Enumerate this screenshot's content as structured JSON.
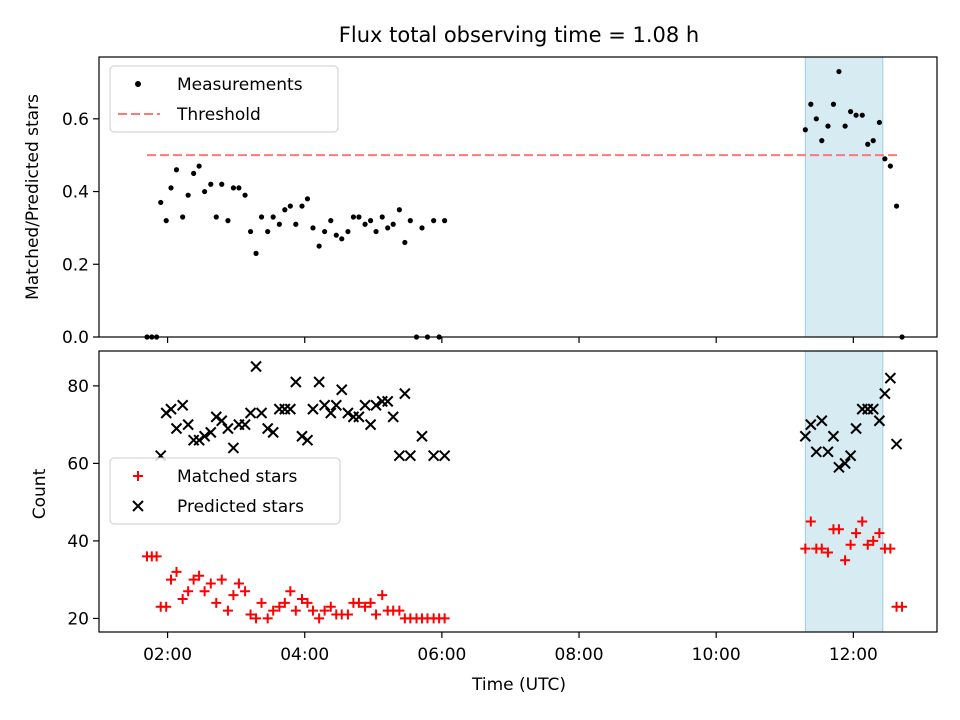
{
  "chart_data": {
    "title": "Flux total observing time = 1.08 h",
    "xlabel": "Time (UTC)",
    "xlim_hours": [
      1.0,
      13.22
    ],
    "xticks": [
      "02:00",
      "04:00",
      "06:00",
      "08:00",
      "10:00",
      "12:00"
    ],
    "highlight_span_hours": [
      11.3,
      12.43
    ],
    "colors": {
      "measure": "#000000",
      "threshold": "#ff7777",
      "matched": "#ff0000",
      "predicted": "#000000",
      "span": "#add8e6"
    },
    "panels": [
      {
        "type": "scatter",
        "ylabel": "Matched/Predicted stars",
        "ylim": [
          0,
          0.77
        ],
        "yticks": [
          "0.0",
          "0.2",
          "0.4",
          "0.6"
        ],
        "legend_position": "upper-left",
        "legend": [
          "Measurements",
          "Threshold"
        ],
        "threshold": {
          "value": 0.5,
          "x": [
            1.7,
            12.68
          ]
        },
        "series": [
          {
            "name": "Measurements",
            "points": [
              [
                1.7,
                0
              ],
              [
                1.77,
                0
              ],
              [
                1.84,
                0
              ],
              [
                1.9,
                0.37
              ],
              [
                1.98,
                0.32
              ],
              [
                2.05,
                0.41
              ],
              [
                2.13,
                0.46
              ],
              [
                2.22,
                0.33
              ],
              [
                2.3,
                0.39
              ],
              [
                2.38,
                0.45
              ],
              [
                2.46,
                0.47
              ],
              [
                2.54,
                0.4
              ],
              [
                2.63,
                0.42
              ],
              [
                2.71,
                0.33
              ],
              [
                2.79,
                0.42
              ],
              [
                2.88,
                0.32
              ],
              [
                2.96,
                0.41
              ],
              [
                3.04,
                0.41
              ],
              [
                3.13,
                0.39
              ],
              [
                3.21,
                0.29
              ],
              [
                3.29,
                0.23
              ],
              [
                3.37,
                0.33
              ],
              [
                3.46,
                0.29
              ],
              [
                3.54,
                0.33
              ],
              [
                3.63,
                0.31
              ],
              [
                3.71,
                0.35
              ],
              [
                3.79,
                0.36
              ],
              [
                3.87,
                0.31
              ],
              [
                3.96,
                0.36
              ],
              [
                4.04,
                0.38
              ],
              [
                4.12,
                0.3
              ],
              [
                4.21,
                0.25
              ],
              [
                4.29,
                0.29
              ],
              [
                4.38,
                0.32
              ],
              [
                4.46,
                0.28
              ],
              [
                4.54,
                0.27
              ],
              [
                4.63,
                0.29
              ],
              [
                4.71,
                0.33
              ],
              [
                4.79,
                0.33
              ],
              [
                4.88,
                0.31
              ],
              [
                4.96,
                0.32
              ],
              [
                5.04,
                0.29
              ],
              [
                5.13,
                0.33
              ],
              [
                5.21,
                0.3
              ],
              [
                5.29,
                0.31
              ],
              [
                5.38,
                0.35
              ],
              [
                5.46,
                0.26
              ],
              [
                5.54,
                0.32
              ],
              [
                5.63,
                0
              ],
              [
                5.71,
                0.3
              ],
              [
                5.79,
                0
              ],
              [
                5.88,
                0.32
              ],
              [
                5.96,
                0
              ],
              [
                6.04,
                0.32
              ],
              [
                11.3,
                0.57
              ],
              [
                11.38,
                0.64
              ],
              [
                11.46,
                0.6
              ],
              [
                11.54,
                0.54
              ],
              [
                11.63,
                0.58
              ],
              [
                11.71,
                0.64
              ],
              [
                11.79,
                0.73
              ],
              [
                11.88,
                0.58
              ],
              [
                11.96,
                0.62
              ],
              [
                12.04,
                0.61
              ],
              [
                12.13,
                0.61
              ],
              [
                12.21,
                0.53
              ],
              [
                12.29,
                0.54
              ],
              [
                12.38,
                0.59
              ],
              [
                12.46,
                0.49
              ],
              [
                12.54,
                0.47
              ],
              [
                12.63,
                0.36
              ],
              [
                12.71,
                0
              ]
            ]
          }
        ]
      },
      {
        "type": "scatter",
        "ylabel": "Count",
        "ylim": [
          16.5,
          89
        ],
        "yticks": [
          "20",
          "40",
          "60",
          "80"
        ],
        "legend_position": "center-left",
        "legend": [
          "Matched stars",
          "Predicted stars"
        ],
        "series": [
          {
            "name": "Matched stars",
            "marker": "plus",
            "points": [
              [
                1.7,
                36
              ],
              [
                1.77,
                36
              ],
              [
                1.84,
                36
              ],
              [
                1.9,
                23
              ],
              [
                1.98,
                23
              ],
              [
                2.05,
                30
              ],
              [
                2.13,
                32
              ],
              [
                2.22,
                25
              ],
              [
                2.3,
                27
              ],
              [
                2.38,
                30
              ],
              [
                2.46,
                31
              ],
              [
                2.54,
                27
              ],
              [
                2.63,
                29
              ],
              [
                2.71,
                24
              ],
              [
                2.79,
                30
              ],
              [
                2.88,
                22
              ],
              [
                2.96,
                26
              ],
              [
                3.04,
                29
              ],
              [
                3.13,
                27
              ],
              [
                3.21,
                21
              ],
              [
                3.29,
                20
              ],
              [
                3.37,
                24
              ],
              [
                3.46,
                20
              ],
              [
                3.54,
                22
              ],
              [
                3.63,
                23
              ],
              [
                3.71,
                24
              ],
              [
                3.79,
                27
              ],
              [
                3.87,
                22
              ],
              [
                3.96,
                25
              ],
              [
                4.04,
                24
              ],
              [
                4.12,
                22
              ],
              [
                4.21,
                20
              ],
              [
                4.29,
                22
              ],
              [
                4.38,
                23
              ],
              [
                4.46,
                21
              ],
              [
                4.54,
                21
              ],
              [
                4.63,
                21
              ],
              [
                4.71,
                24
              ],
              [
                4.79,
                24
              ],
              [
                4.88,
                23
              ],
              [
                4.96,
                24
              ],
              [
                5.04,
                21
              ],
              [
                5.13,
                26
              ],
              [
                5.21,
                22
              ],
              [
                5.29,
                22
              ],
              [
                5.38,
                22
              ],
              [
                5.46,
                20
              ],
              [
                5.54,
                20
              ],
              [
                5.63,
                20
              ],
              [
                5.71,
                20
              ],
              [
                5.79,
                20
              ],
              [
                5.88,
                20
              ],
              [
                5.96,
                20
              ],
              [
                6.04,
                20
              ],
              [
                11.3,
                38
              ],
              [
                11.38,
                45
              ],
              [
                11.46,
                38
              ],
              [
                11.54,
                38
              ],
              [
                11.63,
                37
              ],
              [
                11.71,
                43
              ],
              [
                11.79,
                43
              ],
              [
                11.88,
                35
              ],
              [
                11.96,
                39
              ],
              [
                12.04,
                42
              ],
              [
                12.13,
                45
              ],
              [
                12.21,
                39
              ],
              [
                12.29,
                40
              ],
              [
                12.38,
                42
              ],
              [
                12.46,
                38
              ],
              [
                12.54,
                38
              ],
              [
                12.63,
                23
              ],
              [
                12.71,
                23
              ]
            ]
          },
          {
            "name": "Predicted stars",
            "marker": "x",
            "points": [
              [
                1.9,
                62
              ],
              [
                1.98,
                73
              ],
              [
                2.05,
                74
              ],
              [
                2.13,
                69
              ],
              [
                2.22,
                75
              ],
              [
                2.3,
                70
              ],
              [
                2.38,
                66
              ],
              [
                2.46,
                66
              ],
              [
                2.54,
                67
              ],
              [
                2.63,
                68
              ],
              [
                2.71,
                72
              ],
              [
                2.79,
                71
              ],
              [
                2.88,
                69
              ],
              [
                2.96,
                64
              ],
              [
                3.04,
                70
              ],
              [
                3.13,
                70
              ],
              [
                3.21,
                73
              ],
              [
                3.29,
                85
              ],
              [
                3.37,
                73
              ],
              [
                3.46,
                69
              ],
              [
                3.54,
                68
              ],
              [
                3.63,
                74
              ],
              [
                3.71,
                74
              ],
              [
                3.79,
                74
              ],
              [
                3.87,
                81
              ],
              [
                3.96,
                67
              ],
              [
                4.04,
                66
              ],
              [
                4.12,
                74
              ],
              [
                4.21,
                81
              ],
              [
                4.29,
                75
              ],
              [
                4.38,
                73
              ],
              [
                4.46,
                75
              ],
              [
                4.54,
                79
              ],
              [
                4.63,
                73
              ],
              [
                4.71,
                72
              ],
              [
                4.79,
                72
              ],
              [
                4.88,
                75
              ],
              [
                4.96,
                70
              ],
              [
                5.04,
                75
              ],
              [
                5.13,
                76
              ],
              [
                5.21,
                76
              ],
              [
                5.29,
                72
              ],
              [
                5.38,
                62
              ],
              [
                5.46,
                78
              ],
              [
                5.54,
                62
              ],
              [
                5.71,
                67
              ],
              [
                5.88,
                62
              ],
              [
                6.04,
                62
              ],
              [
                11.3,
                67
              ],
              [
                11.38,
                70
              ],
              [
                11.46,
                63
              ],
              [
                11.54,
                71
              ],
              [
                11.63,
                63
              ],
              [
                11.71,
                67
              ],
              [
                11.79,
                59
              ],
              [
                11.88,
                60
              ],
              [
                11.96,
                62
              ],
              [
                12.04,
                69
              ],
              [
                12.13,
                74
              ],
              [
                12.21,
                74
              ],
              [
                12.29,
                74
              ],
              [
                12.38,
                71
              ],
              [
                12.46,
                78
              ],
              [
                12.54,
                82
              ],
              [
                12.63,
                65
              ]
            ]
          }
        ]
      }
    ]
  }
}
